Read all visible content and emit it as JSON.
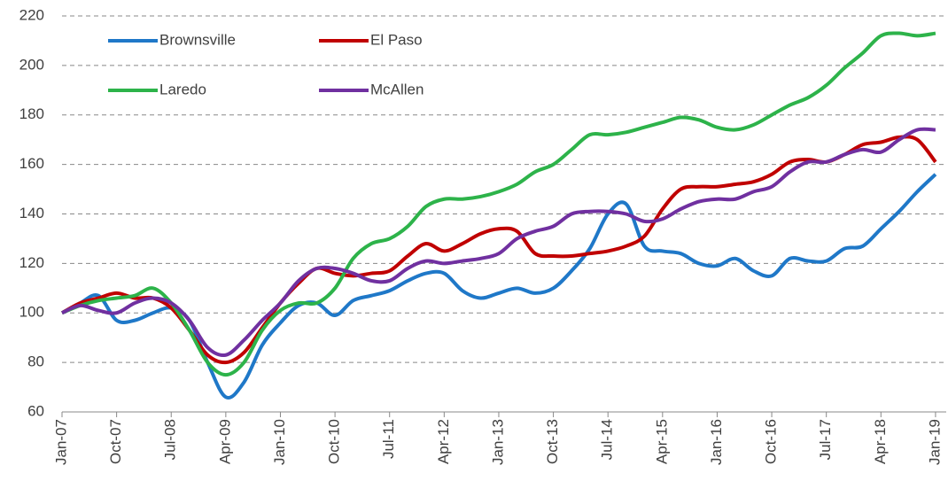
{
  "chart_data": {
    "type": "line",
    "categories": [
      "Jan-07",
      null,
      null,
      "Oct-07",
      null,
      null,
      "Jul-08",
      null,
      null,
      "Apr-09",
      null,
      null,
      "Jan-10",
      null,
      null,
      "Oct-10",
      null,
      null,
      "Jul-11",
      null,
      null,
      "Apr-12",
      null,
      null,
      "Jan-13",
      null,
      null,
      "Oct-13",
      null,
      null,
      "Jul-14",
      null,
      null,
      "Apr-15",
      null,
      null,
      "Jan-16",
      null,
      null,
      "Oct-16",
      null,
      null,
      "Jul-17",
      null,
      null,
      "Apr-18",
      null,
      null,
      "Jan-19"
    ],
    "series": [
      {
        "name": "Brownsville",
        "color": "#1f78c8",
        "values": [
          100,
          104,
          107,
          97,
          97,
          100,
          102,
          97,
          80,
          66,
          72,
          87,
          96,
          103,
          104,
          99,
          105,
          107,
          109,
          113,
          116,
          116,
          109,
          106,
          108,
          110,
          108,
          110,
          117,
          126,
          140,
          144,
          127,
          125,
          124,
          120,
          119,
          122,
          117,
          115,
          122,
          121,
          121,
          126,
          127,
          134,
          141,
          149,
          156
        ]
      },
      {
        "name": "El Paso",
        "color": "#c00000",
        "values": [
          100,
          104,
          106,
          108,
          106,
          106,
          102,
          93,
          83,
          80,
          84,
          94,
          104,
          112,
          118,
          116,
          115,
          116,
          117,
          123,
          128,
          125,
          128,
          132,
          134,
          133,
          124,
          123,
          123,
          124,
          125,
          127,
          131,
          142,
          150,
          151,
          151,
          152,
          153,
          156,
          161,
          162,
          161,
          164,
          168,
          169,
          171,
          170,
          161
        ]
      },
      {
        "name": "Laredo",
        "color": "#2db34a",
        "values": [
          100,
          103,
          105,
          106,
          107,
          110,
          104,
          93,
          80,
          75,
          80,
          93,
          101,
          104,
          104,
          110,
          122,
          128,
          130,
          135,
          143,
          146,
          146,
          147,
          149,
          152,
          157,
          160,
          166,
          172,
          172,
          173,
          175,
          177,
          179,
          178,
          175,
          174,
          176,
          180,
          184,
          187,
          192,
          199,
          205,
          212,
          213,
          212,
          213
        ]
      },
      {
        "name": "McAllen",
        "color": "#7030a0",
        "values": [
          100,
          103,
          101,
          100,
          104,
          106,
          104,
          97,
          86,
          83,
          89,
          97,
          104,
          113,
          118,
          118,
          116,
          113,
          113,
          118,
          121,
          120,
          121,
          122,
          124,
          130,
          133,
          135,
          140,
          141,
          141,
          140,
          137,
          138,
          142,
          145,
          146,
          146,
          149,
          151,
          157,
          161,
          161,
          164,
          166,
          165,
          170,
          174,
          174
        ]
      }
    ],
    "ylim": [
      60,
      220
    ],
    "yticks": [
      60,
      80,
      100,
      120,
      140,
      160,
      180,
      200,
      220
    ],
    "grid": true
  }
}
